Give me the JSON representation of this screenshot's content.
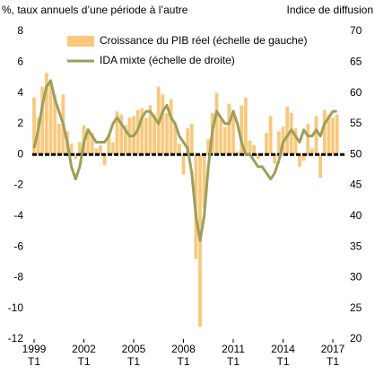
{
  "chart_data": {
    "type": "bar-line",
    "left_axis_label": "%, taux annuels d’une période à l’autre",
    "right_axis_label": "Indice de diffusion",
    "categories": [
      "1999 T1",
      null,
      null,
      null,
      null,
      null,
      null,
      null,
      null,
      null,
      null,
      null,
      "2002 T1",
      null,
      null,
      null,
      null,
      null,
      null,
      null,
      null,
      null,
      null,
      null,
      "2005 T1",
      null,
      null,
      null,
      null,
      null,
      null,
      null,
      null,
      null,
      null,
      null,
      "2008 T1",
      null,
      null,
      null,
      null,
      null,
      null,
      null,
      null,
      null,
      null,
      null,
      "2011 T1",
      null,
      null,
      null,
      null,
      null,
      null,
      null,
      null,
      null,
      null,
      null,
      "2014 T1",
      null,
      null,
      null,
      null,
      null,
      null,
      null,
      null,
      null,
      null,
      null,
      "2017 T1",
      null
    ],
    "series": [
      {
        "name": "Croissance du PIB réel (échelle de gauche)",
        "type": "bar",
        "color": "#f8c97d",
        "values": [
          3.7,
          2.4,
          4.4,
          5.3,
          4.6,
          3.9,
          2.0,
          3.9,
          1.5,
          0.7,
          -0.3,
          0.8,
          1.9,
          1.7,
          1.4,
          0.4,
          0.6,
          -0.7,
          1.2,
          0.8,
          2.8,
          2.6,
          1.9,
          2.4,
          2.5,
          2.9,
          3.0,
          2.4,
          3.2,
          2.6,
          4.4,
          3.9,
          2.7,
          3.6,
          2.0,
          0.7,
          -1.3,
          1.7,
          2.0,
          -6.8,
          -11.2,
          -3.5,
          1.0,
          2.7,
          4.0,
          2.3,
          1.8,
          3.3,
          2.9,
          0.2,
          3.2,
          3.7,
          0.9,
          0.6,
          -0.3,
          0.1,
          1.4,
          2.5,
          -0.6,
          1.5,
          1.8,
          3.1,
          2.7,
          1.7,
          -0.8,
          -0.4,
          2.0,
          0.4,
          2.5,
          -1.5,
          2.9,
          2.6,
          2.4,
          2.6
        ]
      },
      {
        "name": "IDA mixte (échelle de droite)",
        "type": "line",
        "axis": "y2",
        "color": "#9c9f5a",
        "values": [
          51,
          54,
          58,
          61,
          62,
          59,
          57,
          55,
          52,
          48,
          46,
          48,
          52,
          54,
          53,
          52,
          52,
          52,
          53,
          55,
          56,
          55,
          54,
          53,
          53,
          54,
          56,
          57,
          57,
          56,
          55,
          57,
          58,
          56,
          55,
          53,
          52,
          51,
          47,
          40,
          36,
          40,
          48,
          54,
          57,
          56,
          55,
          55,
          57,
          55,
          52,
          50,
          50,
          49,
          48,
          48,
          47,
          46,
          47,
          49,
          52,
          53,
          54,
          53,
          52,
          54,
          53,
          53,
          54,
          53,
          55,
          56,
          57,
          57
        ]
      }
    ],
    "ylim": [
      -12,
      8
    ],
    "yticks": [
      -12,
      -10,
      -8,
      -6,
      -4,
      -2,
      0,
      2,
      4,
      6,
      8
    ],
    "y2lim": [
      20,
      70
    ],
    "y2ticks": [
      20,
      25,
      30,
      35,
      40,
      45,
      50,
      55,
      60,
      65,
      70
    ],
    "legend": "top-left"
  }
}
